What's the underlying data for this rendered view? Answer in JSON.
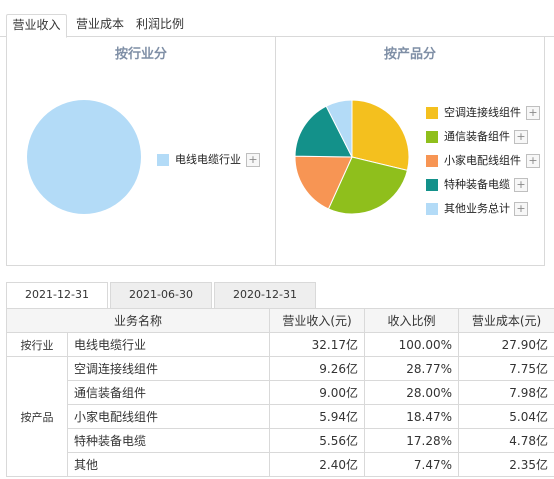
{
  "tabs": [
    "营业收入",
    "营业成本",
    "利润比例"
  ],
  "industry_panel": {
    "title": "按行业分",
    "legend": [
      {
        "label": "电线电缆行业",
        "color": "#b3dbf7"
      }
    ]
  },
  "product_panel": {
    "title": "按产品分",
    "legend": [
      {
        "label": "空调连接线组件",
        "color": "#f4c01e"
      },
      {
        "label": "通信装备组件",
        "color": "#8fbf1c"
      },
      {
        "label": "小家电配线组件",
        "color": "#f79554"
      },
      {
        "label": "特种装备电缆",
        "color": "#13918a"
      },
      {
        "label": "其他业务总计",
        "color": "#b3dbf7"
      }
    ]
  },
  "plus_glyph": "+",
  "chart_data": [
    {
      "type": "pie",
      "title": "按行业分",
      "labels": [
        "电线电缆行业"
      ],
      "values": [
        100.0
      ]
    },
    {
      "type": "pie",
      "title": "按产品分",
      "labels": [
        "空调连接线组件",
        "通信装备组件",
        "小家电配线组件",
        "特种装备电缆",
        "其他业务总计"
      ],
      "values": [
        28.77,
        28.0,
        18.47,
        17.28,
        7.47
      ]
    }
  ],
  "date_tabs": [
    "2021-12-31",
    "2021-06-30",
    "2020-12-31"
  ],
  "table": {
    "headers": [
      "业务名称",
      "营业收入(元)",
      "收入比例",
      "营业成本(元)"
    ],
    "groups": [
      {
        "label": "按行业",
        "rows": [
          {
            "name": "电线电缆行业",
            "revenue": "32.17亿",
            "ratio": "100.00%",
            "cost": "27.90亿"
          }
        ]
      },
      {
        "label": "按产品",
        "rows": [
          {
            "name": "空调连接线组件",
            "revenue": "9.26亿",
            "ratio": "28.77%",
            "cost": "7.75亿"
          },
          {
            "name": "通信装备组件",
            "revenue": "9.00亿",
            "ratio": "28.00%",
            "cost": "7.98亿"
          },
          {
            "name": "小家电配线组件",
            "revenue": "5.94亿",
            "ratio": "18.47%",
            "cost": "5.04亿"
          },
          {
            "name": "特种装备电缆",
            "revenue": "5.56亿",
            "ratio": "17.28%",
            "cost": "4.78亿"
          },
          {
            "name": "其他",
            "revenue": "2.40亿",
            "ratio": "7.47%",
            "cost": "2.35亿"
          }
        ]
      }
    ]
  }
}
